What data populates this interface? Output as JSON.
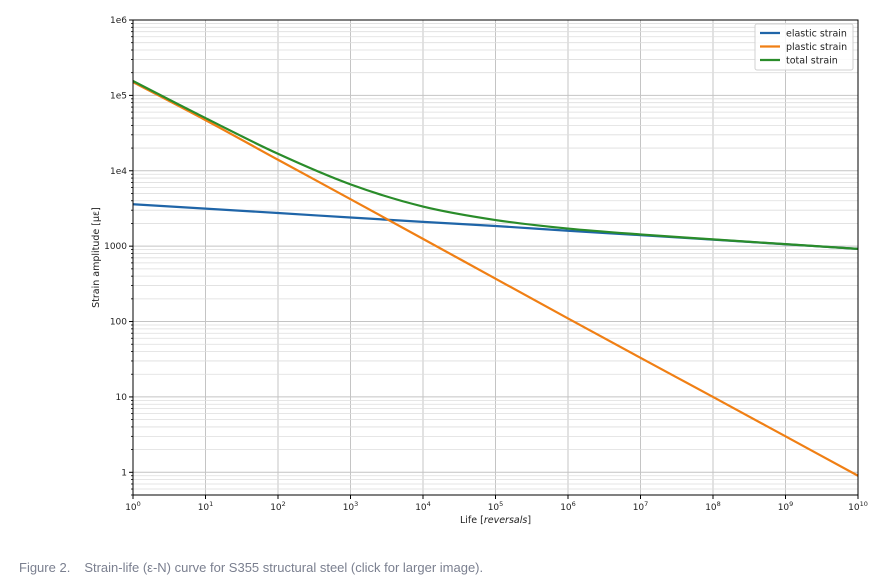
{
  "chart_data": {
    "type": "line",
    "title": "",
    "xlabel_prefix": "Life [",
    "xlabel_italic": "reversals",
    "xlabel_suffix": "]",
    "ylabel": "Strain amplitude [µε]",
    "x_scale": "log",
    "y_scale": "log",
    "xlim": [
      1,
      10000000000
    ],
    "ylim": [
      0.5,
      1000000
    ],
    "grid": true,
    "legend_position": "top-right",
    "x_ticks": [
      {
        "value": 1,
        "base": "10",
        "exp": "0"
      },
      {
        "value": 10,
        "base": "10",
        "exp": "1"
      },
      {
        "value": 100,
        "base": "10",
        "exp": "2"
      },
      {
        "value": 1000,
        "base": "10",
        "exp": "3"
      },
      {
        "value": 10000,
        "base": "10",
        "exp": "4"
      },
      {
        "value": 100000,
        "base": "10",
        "exp": "5"
      },
      {
        "value": 1000000,
        "base": "10",
        "exp": "6"
      },
      {
        "value": 10000000,
        "base": "10",
        "exp": "7"
      },
      {
        "value": 100000000,
        "base": "10",
        "exp": "8"
      },
      {
        "value": 1000000000,
        "base": "10",
        "exp": "9"
      },
      {
        "value": 10000000000,
        "base": "10",
        "exp": "10"
      }
    ],
    "y_ticks": [
      {
        "value": 1,
        "label": "1"
      },
      {
        "value": 10,
        "label": "10"
      },
      {
        "value": 100,
        "label": "100"
      },
      {
        "value": 1000,
        "label": "1000"
      },
      {
        "value": 10000,
        "label": "1e4"
      },
      {
        "value": 100000,
        "label": "1e5"
      },
      {
        "value": 1000000,
        "label": "1e6"
      }
    ],
    "x": [
      1,
      10,
      100,
      1000,
      10000,
      100000,
      1000000,
      10000000,
      100000000,
      1000000000,
      10000000000
    ],
    "series": [
      {
        "name": "elastic strain",
        "color": "#1f65a8",
        "values": [
          3600,
          3150,
          2750,
          2400,
          2100,
          1850,
          1600,
          1400,
          1220,
          1060,
          920
        ]
      },
      {
        "name": "plastic strain",
        "color": "#f07f14",
        "values": [
          150000,
          47000,
          14000,
          4200,
          1250,
          370,
          110,
          33,
          10,
          3,
          0.9
        ]
      },
      {
        "name": "total strain",
        "color": "#2a8c2a",
        "values": [
          155000,
          50000,
          16800,
          6600,
          3350,
          2220,
          1710,
          1430,
          1230,
          1063,
          921
        ]
      }
    ]
  },
  "caption": {
    "figure_label": "Figure 2.",
    "text": "Strain-life (ε-N) curve for S355 structural steel (click for larger image)."
  }
}
